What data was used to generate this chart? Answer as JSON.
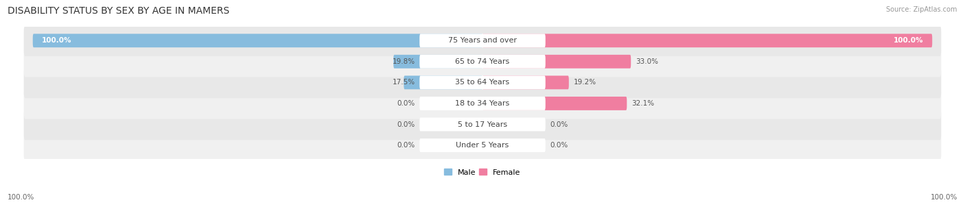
{
  "title": "DISABILITY STATUS BY SEX BY AGE IN MAMERS",
  "source": "Source: ZipAtlas.com",
  "categories": [
    "Under 5 Years",
    "5 to 17 Years",
    "18 to 34 Years",
    "35 to 64 Years",
    "65 to 74 Years",
    "75 Years and over"
  ],
  "male_values": [
    0.0,
    0.0,
    0.0,
    17.5,
    19.8,
    100.0
  ],
  "female_values": [
    0.0,
    0.0,
    32.1,
    19.2,
    33.0,
    100.0
  ],
  "male_color": "#87BCDE",
  "female_color": "#F07EA0",
  "row_bg_colors": [
    "#F0F0F0",
    "#E8E8E8",
    "#F0F0F0",
    "#E8E8E8",
    "#F0F0F0",
    "#E8E8E8"
  ],
  "legend_male": "Male",
  "legend_female": "Female",
  "max_val": 100.0,
  "title_fontsize": 10,
  "label_fontsize": 8,
  "value_fontsize": 7.5,
  "figsize": [
    14.06,
    3.05
  ],
  "dpi": 100
}
